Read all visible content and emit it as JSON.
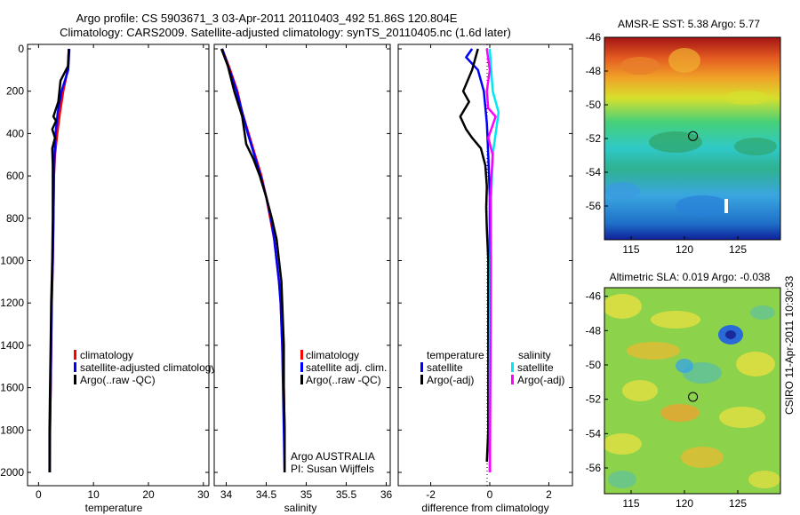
{
  "figure": {
    "title_line1": "Argo profile: CS 5903671_3 03-Apr-2011 20110403_492 51.86S 120.804E",
    "title_line2": "Climatology: CARS2009. Satellite-adjusted climatology: synTS_20110405.nc (1.6d later)",
    "side_stamp": "CSIRO 11-Apr-2011 10:30:33",
    "credit_line1": "Argo AUSTRALIA",
    "credit_line2": "PI: Susan Wijffels"
  },
  "colors": {
    "climatology": "#ff0000",
    "satellite": "#0000ff",
    "argo": "#000000",
    "sal_satellite": "#00e8f0",
    "sal_argo": "#ff00ff"
  },
  "chart_data": [
    {
      "id": "temperature",
      "type": "line",
      "xlabel": "temperature",
      "ylabel": "",
      "xlim": [
        -2,
        31
      ],
      "ylim": [
        0,
        2050
      ],
      "xticks": [
        0,
        10,
        20,
        30
      ],
      "yticks": [
        0,
        200,
        400,
        600,
        800,
        1000,
        1200,
        1400,
        1600,
        1800,
        2000
      ],
      "y_reversed": true,
      "legend": [
        "climatology",
        "satellite-adjusted climatology",
        "Argo(..raw -QC)"
      ],
      "series": [
        {
          "name": "climatology",
          "color": "#ff0000",
          "points": [
            [
              5.5,
              0
            ],
            [
              5.3,
              100
            ],
            [
              4.5,
              200
            ],
            [
              3.9,
              300
            ],
            [
              3.4,
              400
            ],
            [
              3.0,
              500
            ],
            [
              2.8,
              600
            ],
            [
              2.7,
              800
            ],
            [
              2.6,
              1000
            ],
            [
              2.4,
              1200
            ],
            [
              2.3,
              1400
            ],
            [
              2.2,
              1600
            ],
            [
              2.1,
              1800
            ],
            [
              2.1,
              2000
            ]
          ]
        },
        {
          "name": "satellite-adjusted climatology",
          "color": "#0000ff",
          "points": [
            [
              5.6,
              0
            ],
            [
              5.4,
              100
            ],
            [
              4.2,
              200
            ],
            [
              3.5,
              300
            ],
            [
              3.1,
              400
            ],
            [
              2.9,
              500
            ],
            [
              2.8,
              600
            ],
            [
              2.7,
              800
            ],
            [
              2.6,
              1000
            ],
            [
              2.4,
              1200
            ],
            [
              2.3,
              1400
            ],
            [
              2.2,
              1600
            ],
            [
              2.1,
              1800
            ],
            [
              2.0,
              2000
            ]
          ]
        },
        {
          "name": "Argo(..raw -QC)",
          "color": "#000000",
          "points": [
            [
              5.5,
              0
            ],
            [
              5.4,
              80
            ],
            [
              4.0,
              150
            ],
            [
              3.6,
              250
            ],
            [
              2.7,
              320
            ],
            [
              3.2,
              340
            ],
            [
              2.5,
              380
            ],
            [
              3.0,
              420
            ],
            [
              2.5,
              470
            ],
            [
              2.6,
              550
            ],
            [
              2.6,
              800
            ],
            [
              2.5,
              1000
            ],
            [
              2.3,
              1200
            ],
            [
              2.2,
              1400
            ],
            [
              2.1,
              1600
            ],
            [
              2.0,
              1800
            ],
            [
              2.0,
              2000
            ]
          ]
        }
      ]
    },
    {
      "id": "salinity",
      "type": "line",
      "xlabel": "salinity",
      "ylabel": "",
      "xlim": [
        33.85,
        36.05
      ],
      "ylim": [
        0,
        2050
      ],
      "xticks": [
        34,
        34.5,
        35,
        35.5,
        36
      ],
      "yticks": [
        0,
        200,
        400,
        600,
        800,
        1000,
        1200,
        1400,
        1600,
        1800,
        2000
      ],
      "y_reversed": true,
      "legend": [
        "climatology",
        "satellite adj. clim.",
        "Argo(..raw -QC)"
      ],
      "series": [
        {
          "name": "climatology",
          "color": "#ff0000",
          "points": [
            [
              33.95,
              0
            ],
            [
              34.05,
              100
            ],
            [
              34.14,
              200
            ],
            [
              34.2,
              300
            ],
            [
              34.28,
              400
            ],
            [
              34.36,
              500
            ],
            [
              34.44,
              600
            ],
            [
              34.5,
              700
            ],
            [
              34.55,
              800
            ],
            [
              34.6,
              900
            ],
            [
              34.63,
              1000
            ],
            [
              34.66,
              1100
            ],
            [
              34.68,
              1200
            ],
            [
              34.7,
              1400
            ],
            [
              34.72,
              1600
            ],
            [
              34.73,
              1800
            ],
            [
              34.73,
              2000
            ]
          ]
        },
        {
          "name": "satellite adj. clim.",
          "color": "#0000ff",
          "points": [
            [
              33.95,
              0
            ],
            [
              34.04,
              100
            ],
            [
              34.13,
              200
            ],
            [
              34.2,
              300
            ],
            [
              34.27,
              400
            ],
            [
              34.35,
              500
            ],
            [
              34.43,
              600
            ],
            [
              34.5,
              700
            ],
            [
              34.56,
              800
            ],
            [
              34.6,
              900
            ],
            [
              34.63,
              1000
            ],
            [
              34.66,
              1100
            ],
            [
              34.68,
              1200
            ],
            [
              34.7,
              1400
            ],
            [
              34.71,
              1600
            ],
            [
              34.72,
              1800
            ],
            [
              34.73,
              2000
            ]
          ]
        },
        {
          "name": "Argo(..raw -QC)",
          "color": "#000000",
          "points": [
            [
              33.94,
              0
            ],
            [
              34.02,
              80
            ],
            [
              34.1,
              200
            ],
            [
              34.2,
              320
            ],
            [
              34.25,
              450
            ],
            [
              34.34,
              520
            ],
            [
              34.42,
              600
            ],
            [
              34.5,
              700
            ],
            [
              34.57,
              800
            ],
            [
              34.63,
              900
            ],
            [
              34.66,
              1000
            ],
            [
              34.69,
              1100
            ],
            [
              34.7,
              1200
            ],
            [
              34.72,
              1400
            ],
            [
              34.72,
              1600
            ],
            [
              34.73,
              1800
            ],
            [
              34.73,
              2000
            ]
          ]
        }
      ]
    },
    {
      "id": "difference",
      "type": "line",
      "xlabel": "difference from climatology",
      "ylabel": "",
      "xlim": [
        -3.1,
        2.8
      ],
      "ylim": [
        0,
        2050
      ],
      "xticks": [
        -2,
        0,
        2
      ],
      "yticks": [
        0,
        200,
        400,
        600,
        800,
        1000,
        1200,
        1400,
        1600,
        1800,
        2000
      ],
      "y_reversed": true,
      "legend_groups": [
        {
          "title": "temperature",
          "entries": [
            "satellite",
            "Argo(-adj)"
          ]
        },
        {
          "title": "salinity",
          "entries": [
            "satellite",
            "Argo(-adj)"
          ]
        }
      ],
      "series": [
        {
          "name": "temperature satellite",
          "color": "#0000ff",
          "points": [
            [
              -0.6,
              0
            ],
            [
              -0.8,
              40
            ],
            [
              -0.4,
              100
            ],
            [
              -0.2,
              200
            ],
            [
              -0.1,
              350
            ],
            [
              -0.05,
              500
            ],
            [
              0,
              700
            ],
            [
              0,
              1000
            ],
            [
              0,
              1500
            ],
            [
              0,
              2000
            ]
          ]
        },
        {
          "name": "temperature Argo(-adj)",
          "color": "#000000",
          "points": [
            [
              -0.4,
              0
            ],
            [
              -0.6,
              100
            ],
            [
              -0.9,
              200
            ],
            [
              -0.7,
              250
            ],
            [
              -1.0,
              320
            ],
            [
              -0.8,
              380
            ],
            [
              -0.6,
              420
            ],
            [
              -0.3,
              470
            ],
            [
              -0.15,
              550
            ],
            [
              -0.1,
              650
            ],
            [
              -0.12,
              750
            ],
            [
              -0.1,
              850
            ],
            [
              -0.05,
              1000
            ],
            [
              -0.05,
              1300
            ],
            [
              -0.05,
              1600
            ],
            [
              -0.05,
              1800
            ],
            [
              -0.1,
              1950
            ]
          ]
        },
        {
          "name": "salinity satellite",
          "color": "#00e8f0",
          "points": [
            [
              0,
              0
            ],
            [
              0.05,
              100
            ],
            [
              0.1,
              200
            ],
            [
              0.3,
              300
            ],
            [
              0.2,
              400
            ],
            [
              0.1,
              500
            ],
            [
              0.05,
              700
            ],
            [
              0.02,
              1000
            ],
            [
              0,
              1500
            ],
            [
              0,
              2000
            ]
          ]
        },
        {
          "name": "salinity Argo(-adj)",
          "color": "#ff00ff",
          "points": [
            [
              -0.1,
              0
            ],
            [
              0,
              100
            ],
            [
              -0.1,
              200
            ],
            [
              -0.05,
              280
            ],
            [
              0.2,
              320
            ],
            [
              -0.05,
              420
            ],
            [
              0.1,
              500
            ],
            [
              0.02,
              700
            ],
            [
              0.04,
              1000
            ],
            [
              0.03,
              1300
            ],
            [
              0.02,
              1600
            ],
            [
              0.01,
              1900
            ],
            [
              0.01,
              2000
            ]
          ]
        }
      ]
    },
    {
      "id": "sst_map",
      "type": "heatmap",
      "title": "AMSR-E SST: 5.38 Argo: 5.77",
      "xlim": [
        112.5,
        129
      ],
      "ylim": [
        -58,
        -46
      ],
      "xticks": [
        115,
        120,
        125
      ],
      "yticks": [
        -46,
        -48,
        -50,
        -52,
        -54,
        -56
      ],
      "argo_position": [
        120.804,
        -51.86
      ]
    },
    {
      "id": "sla_map",
      "type": "heatmap",
      "title": "Altimetric SLA: 0.019 Argo: -0.038",
      "xlim": [
        112.5,
        129
      ],
      "ylim": [
        -57.5,
        -45.5
      ],
      "xticks": [
        115,
        120,
        125
      ],
      "yticks": [
        -46,
        -48,
        -50,
        -52,
        -54,
        -56
      ],
      "argo_position": [
        120.804,
        -51.86
      ]
    }
  ]
}
